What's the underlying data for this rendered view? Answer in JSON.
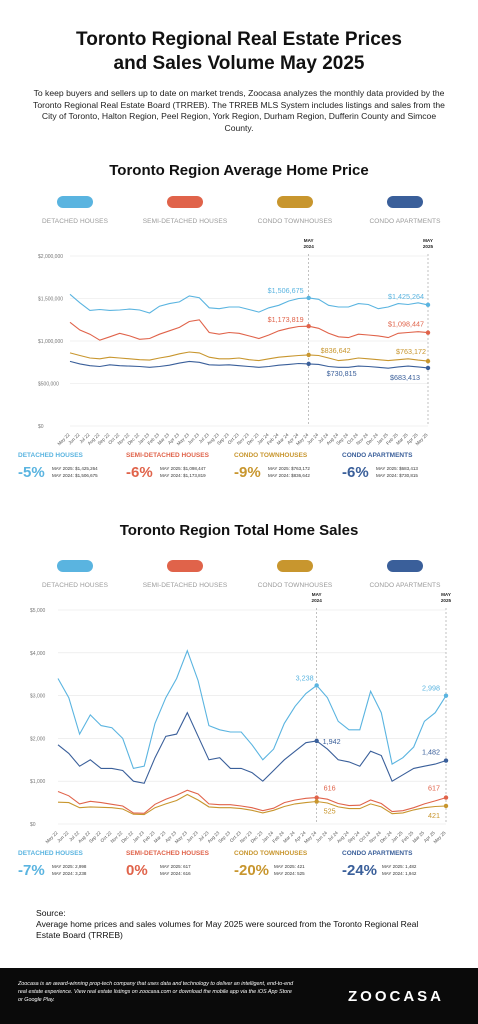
{
  "title_line1": "Toronto Regional Real Estate Prices",
  "title_line2": "and Sales Volume May 2025",
  "intro": "To keep buyers and sellers up to date on market trends, Zoocasa analyzes the monthly data provided by the Toronto Regional Real Estate Board (TRREB). The TRREB MLS System includes listings and sales from the City of Toronto, Halton Region, Peel Region, York Region, Durham Region, Dufferin County and Simcoe County.",
  "colors": {
    "detached": "#5ab4e0",
    "semi": "#e0634a",
    "townhouse": "#c8962e",
    "apartment": "#3a5f9a"
  },
  "legend": [
    "DETACHED HOUSES",
    "SEMI-DETACHED HOUSES",
    "CONDO TOWNHOUSES",
    "CONDO APARTMENTS"
  ],
  "months": [
    "May 22",
    "Jun 22",
    "Jul 22",
    "Aug 22",
    "Sep 22",
    "Oct 22",
    "Nov 22",
    "Dec 22",
    "Jan 23",
    "Feb 23",
    "Mar 23",
    "Apr 23",
    "May 23",
    "Jun 23",
    "Jul 23",
    "Aug 23",
    "Sep 23",
    "Oct 23",
    "Nov 23",
    "Dec 23",
    "Jan 24",
    "Feb 24",
    "Mar 24",
    "Apr 24",
    "May 24",
    "Jun 24",
    "Jul 24",
    "Aug 24",
    "Sep 24",
    "Oct 24",
    "Nov 24",
    "Dec 24",
    "Jan 25",
    "Feb 25",
    "Mar 25",
    "Apr 25",
    "May 25"
  ],
  "chart_data": [
    {
      "type": "line",
      "title": "Toronto Region Average Home Price",
      "x": [
        "May 22",
        "Jun 22",
        "Jul 22",
        "Aug 22",
        "Sep 22",
        "Oct 22",
        "Nov 22",
        "Dec 22",
        "Jan 23",
        "Feb 23",
        "Mar 23",
        "Apr 23",
        "May 23",
        "Jun 23",
        "Jul 23",
        "Aug 23",
        "Sep 23",
        "Oct 23",
        "Nov 23",
        "Dec 23",
        "Jan 24",
        "Feb 24",
        "Mar 24",
        "Apr 24",
        "May 24",
        "Jun 24",
        "Jul 24",
        "Aug 24",
        "Sep 24",
        "Oct 24",
        "Nov 24",
        "Dec 24",
        "Jan 25",
        "Feb 25",
        "Mar 25",
        "Apr 25",
        "May 25"
      ],
      "y_ticks": [
        "$0",
        "$500,000",
        "$1,000,000",
        "$1,500,000",
        "$2,000,000"
      ],
      "ylim": [
        0,
        2000000
      ],
      "series": [
        {
          "key": "detached",
          "name": "DETACHED HOUSES",
          "values": [
            1550000,
            1450000,
            1360000,
            1370000,
            1360000,
            1365000,
            1375000,
            1365000,
            1330000,
            1410000,
            1440000,
            1460000,
            1530000,
            1510000,
            1390000,
            1380000,
            1400000,
            1400000,
            1370000,
            1340000,
            1390000,
            1420000,
            1470000,
            1500000,
            1506675,
            1490000,
            1420000,
            1400000,
            1400000,
            1440000,
            1430000,
            1380000,
            1400000,
            1440000,
            1430000,
            1450000,
            1425264
          ]
        },
        {
          "key": "semi",
          "name": "SEMI-DETACHED HOUSES",
          "values": [
            1220000,
            1130000,
            1080000,
            1010000,
            1050000,
            1090000,
            1060000,
            1020000,
            1030000,
            1080000,
            1120000,
            1160000,
            1230000,
            1250000,
            1100000,
            1080000,
            1100000,
            1090000,
            1060000,
            1030000,
            1070000,
            1120000,
            1150000,
            1170000,
            1173819,
            1150000,
            1090000,
            1050000,
            1040000,
            1080000,
            1070000,
            1060000,
            1040000,
            1090000,
            1100000,
            1110000,
            1098447
          ]
        },
        {
          "key": "townhouse",
          "name": "CONDO TOWNHOUSES",
          "values": [
            860000,
            830000,
            800000,
            790000,
            810000,
            800000,
            790000,
            780000,
            775000,
            800000,
            820000,
            850000,
            870000,
            860000,
            810000,
            790000,
            790000,
            800000,
            780000,
            770000,
            790000,
            810000,
            820000,
            830000,
            836642,
            830000,
            800000,
            770000,
            780000,
            800000,
            790000,
            780000,
            770000,
            780000,
            790000,
            775000,
            763172
          ]
        },
        {
          "key": "apartment",
          "name": "CONDO APARTMENTS",
          "values": [
            760000,
            730000,
            710000,
            700000,
            720000,
            710000,
            705000,
            700000,
            690000,
            700000,
            715000,
            740000,
            760000,
            750000,
            720000,
            715000,
            720000,
            710000,
            700000,
            690000,
            700000,
            715000,
            725000,
            735000,
            730815,
            725000,
            700000,
            690000,
            690000,
            705000,
            700000,
            690000,
            680000,
            695000,
            705000,
            695000,
            683413
          ]
        }
      ],
      "annotations": [
        {
          "key": "detached",
          "text": "$1,506,675",
          "index": 24
        },
        {
          "key": "detached",
          "text": "$1,425,264",
          "index": 36
        },
        {
          "key": "semi",
          "text": "$1,173,819",
          "index": 24
        },
        {
          "key": "semi",
          "text": "$1,098,447",
          "index": 36
        },
        {
          "key": "townhouse",
          "text": "$836,642",
          "index": 24
        },
        {
          "key": "townhouse",
          "text": "$763,172",
          "index": 36
        },
        {
          "key": "apartment",
          "text": "$730,815",
          "index": 24
        },
        {
          "key": "apartment",
          "text": "$683,413",
          "index": 36
        }
      ],
      "markers": [
        "MAY 2024",
        "MAY 2025"
      ]
    },
    {
      "type": "line",
      "title": "Toronto Region Total Home Sales",
      "x": [
        "May 22",
        "Jun 22",
        "Jul 22",
        "Aug 22",
        "Sep 22",
        "Oct 22",
        "Nov 22",
        "Dec 22",
        "Jan 23",
        "Feb 23",
        "Mar 23",
        "Apr 23",
        "May 23",
        "Jun 23",
        "Jul 23",
        "Aug 23",
        "Sep 23",
        "Oct 23",
        "Nov 23",
        "Dec 23",
        "Jan 24",
        "Feb 24",
        "Mar 24",
        "Apr 24",
        "May 24",
        "Jun 24",
        "Jul 24",
        "Aug 24",
        "Sep 24",
        "Oct 24",
        "Nov 24",
        "Dec 24",
        "Jan 25",
        "Feb 25",
        "Mar 25",
        "Apr 25",
        "May 25"
      ],
      "y_ticks": [
        "$0",
        "$1,000",
        "$2,000",
        "$3,000",
        "$4,000",
        "$5,000"
      ],
      "ylim": [
        0,
        5000
      ],
      "series": [
        {
          "key": "detached",
          "name": "DETACHED HOUSES",
          "values": [
            3400,
            2950,
            2100,
            2550,
            2300,
            2250,
            2000,
            1300,
            1350,
            2350,
            2950,
            3400,
            4050,
            3350,
            2300,
            2200,
            2150,
            2150,
            1850,
            1500,
            1750,
            2350,
            2750,
            3050,
            3238,
            2950,
            2400,
            2200,
            2200,
            3100,
            2600,
            1400,
            1550,
            1800,
            2400,
            2600,
            2998
          ]
        },
        {
          "key": "semi",
          "name": "SEMI-DETACHED HOUSES",
          "values": [
            760,
            660,
            470,
            530,
            500,
            460,
            420,
            260,
            250,
            460,
            580,
            670,
            790,
            700,
            470,
            450,
            450,
            420,
            380,
            310,
            370,
            500,
            560,
            600,
            616,
            580,
            480,
            430,
            440,
            560,
            480,
            290,
            310,
            380,
            470,
            540,
            617
          ]
        },
        {
          "key": "townhouse",
          "name": "CONDO TOWNHOUSES",
          "values": [
            510,
            500,
            380,
            400,
            390,
            380,
            350,
            230,
            220,
            380,
            470,
            550,
            690,
            560,
            400,
            380,
            380,
            360,
            320,
            260,
            320,
            410,
            470,
            500,
            525,
            490,
            400,
            360,
            360,
            470,
            400,
            240,
            260,
            330,
            380,
            410,
            421
          ]
        },
        {
          "key": "apartment",
          "name": "CONDO APARTMENTS",
          "values": [
            1850,
            1650,
            1350,
            1500,
            1300,
            1300,
            1250,
            1000,
            950,
            1550,
            2050,
            2100,
            2600,
            2050,
            1500,
            1550,
            1300,
            1300,
            1200,
            1000,
            1250,
            1500,
            1700,
            1900,
            1942,
            1750,
            1500,
            1450,
            1350,
            1700,
            1600,
            1000,
            1150,
            1300,
            1350,
            1400,
            1482
          ]
        }
      ],
      "annotations": [
        {
          "key": "detached",
          "text": "3,238",
          "index": 24
        },
        {
          "key": "detached",
          "text": "2,998",
          "index": 36
        },
        {
          "key": "apartment",
          "text": "1,942",
          "index": 24
        },
        {
          "key": "apartment",
          "text": "1,482",
          "index": 36
        },
        {
          "key": "semi",
          "text": "616",
          "index": 24
        },
        {
          "key": "semi",
          "text": "617",
          "index": 36
        },
        {
          "key": "townhouse",
          "text": "525",
          "index": 24
        },
        {
          "key": "townhouse",
          "text": "421",
          "index": 36
        }
      ],
      "markers": [
        "MAY 2024",
        "MAY 2025"
      ]
    }
  ],
  "price_stats": [
    {
      "name": "DETACHED HOUSES",
      "pct": "-5%",
      "l1": "MAY 2025: $1,425,264",
      "l2": "MAY 2024: $1,506,675"
    },
    {
      "name": "SEMI-DETACHED HOUSES",
      "pct": "-6%",
      "l1": "MAY 2025: $1,098,447",
      "l2": "MAY 2024: $1,173,819"
    },
    {
      "name": "CONDO TOWNHOUSES",
      "pct": "-9%",
      "l1": "MAY 2025: $763,172",
      "l2": "MAY 2024: $836,642"
    },
    {
      "name": "CONDO APARTMENTS",
      "pct": "-6%",
      "l1": "MAY 2025: $683,413",
      "l2": "MAY 2024: $730,815"
    }
  ],
  "sales_stats": [
    {
      "name": "DETACHED HOUSES",
      "pct": "-7%",
      "l1": "MAY 2025:   2,998",
      "l2": "MAY 2024:   3,238"
    },
    {
      "name": "SEMI-DETACHED HOUSES",
      "pct": "0%",
      "l1": "MAY 2025:  617",
      "l2": "MAY 2024:  616"
    },
    {
      "name": "CONDO TOWNHOUSES",
      "pct": "-20%",
      "l1": "MAY 2025:   421",
      "l2": "MAY 2024:   525"
    },
    {
      "name": "CONDO APARTMENTS",
      "pct": "-24%",
      "l1": "MAY 2025:  1,482",
      "l2": "MAY 2024:  1,942"
    }
  ],
  "source_label": "Source:",
  "source_text": "Average home prices and sales volumes for May 2025 were sourced from the Toronto Regional Real Estate Board (TRREB)",
  "footer_text": "Zoocasa is an award-winning prop-tech company that uses data and technology to deliver an intelligent, end-to-end real estate experience. View real estate listings on zoocasa.com or download the mobile app via the iOS App Store or Google Play.",
  "logo": "ZOOCASA"
}
